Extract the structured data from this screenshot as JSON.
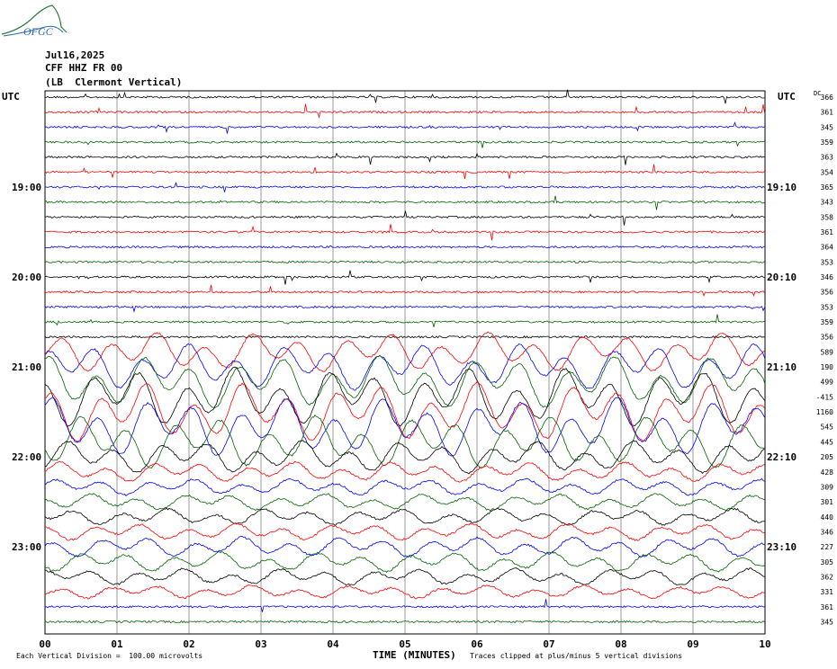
{
  "header": {
    "logo_text": "OFGC",
    "date": "Jul16,2025",
    "station": "CFF HHZ FR 00",
    "location": "(LB  Clermont Vertical)"
  },
  "labels": {
    "utc_left": "UTC",
    "utc_right": "UTC",
    "dc": "DC",
    "xlabel": "TIME (MINUTES)",
    "scale_note": "Each Vertical Division =  100.00 microvolts",
    "clip_note": "Traces clipped at plus/minus 5 vertical divisions"
  },
  "chart_data": {
    "type": "line",
    "title": "",
    "xlabel": "TIME (MINUTES)",
    "ylabel": "",
    "x_ticks": [
      "00",
      "01",
      "02",
      "03",
      "04",
      "05",
      "06",
      "07",
      "08",
      "09",
      "10"
    ],
    "xlim": [
      0,
      10
    ],
    "grid": true,
    "left_hour_labels": [
      {
        "label": "19:00",
        "row": 6
      },
      {
        "label": "20:00",
        "row": 12
      },
      {
        "label": "21:00",
        "row": 18
      },
      {
        "label": "22:00",
        "row": 24
      },
      {
        "label": "23:00",
        "row": 30
      }
    ],
    "right_hour_labels": [
      {
        "label": "19:10",
        "row": 6
      },
      {
        "label": "20:10",
        "row": 12
      },
      {
        "label": "21:10",
        "row": 18
      },
      {
        "label": "22:10",
        "row": 24
      },
      {
        "label": "23:10",
        "row": 30
      }
    ],
    "trace_colors": [
      "#000000",
      "#ff0000",
      "#0000ff",
      "#006400"
    ],
    "dc_offsets": [
      366,
      361,
      345,
      359,
      363,
      354,
      365,
      343,
      358,
      361,
      364,
      353,
      346,
      356,
      353,
      359,
      356,
      589,
      190,
      499,
      -415,
      1160,
      545,
      445,
      205,
      428,
      309,
      301,
      440,
      346,
      227,
      305,
      362,
      331,
      361,
      345
    ],
    "trace_activity": [
      1,
      1,
      1,
      1,
      1,
      1.2,
      1,
      1,
      1.1,
      1,
      0.8,
      0.8,
      1,
      1,
      1,
      1.2,
      0.6,
      6,
      7,
      8,
      9,
      9,
      9,
      8,
      5,
      3,
      2.5,
      2.5,
      2.5,
      2.5,
      3,
      3,
      2.5,
      2,
      1.2,
      0.9
    ]
  }
}
